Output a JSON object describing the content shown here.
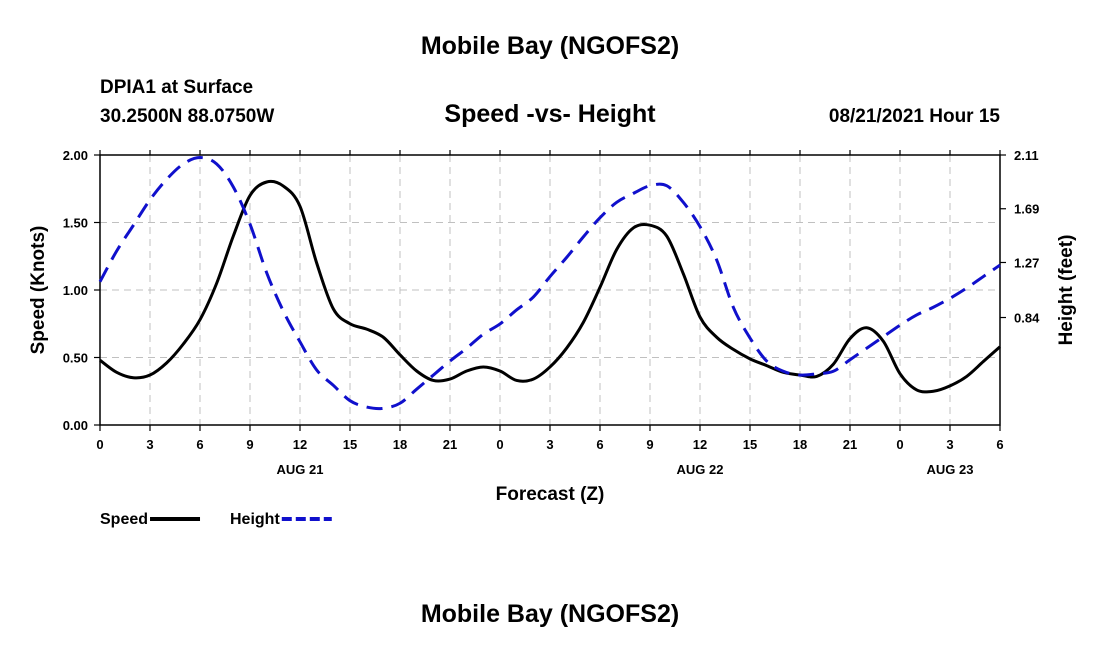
{
  "header": {
    "title": "Mobile Bay (NGOFS2)",
    "station": "DPIA1 at Surface",
    "location": "30.2500N  88.0750W",
    "chart_title": "Speed -vs- Height",
    "datetime": "08/21/2021 Hour 15"
  },
  "footer": {
    "title": "Mobile Bay (NGOFS2)"
  },
  "chart_data": {
    "type": "line",
    "title": "Speed -vs- Height",
    "xlabel": "Forecast (Z)",
    "ylabel_left": "Speed (Knots)",
    "ylabel_right": "Height (feet)",
    "x_unit": "hours from 00Z Aug 21",
    "xlim": [
      0,
      54
    ],
    "ylim_left": [
      0,
      2.0
    ],
    "ylim_right": [
      0,
      2.11
    ],
    "grid": true,
    "x_ticks": [
      0,
      3,
      6,
      9,
      12,
      15,
      18,
      21,
      24,
      27,
      30,
      33,
      36,
      39,
      42,
      45,
      48,
      51,
      54
    ],
    "x_tick_labels": [
      "0",
      "3",
      "6",
      "9",
      "12",
      "15",
      "18",
      "21",
      "0",
      "3",
      "6",
      "9",
      "12",
      "15",
      "18",
      "21",
      "0",
      "3",
      "6"
    ],
    "y_left_ticks": [
      0,
      0.5,
      1.0,
      1.5,
      2.0
    ],
    "y_left_tick_labels": [
      "0.00",
      "0.50",
      "1.00",
      "1.50",
      "2.00"
    ],
    "y_right_tick_labels": [
      "0.84",
      "1.27",
      "1.69",
      "2.11"
    ],
    "date_labels": [
      {
        "x": 12,
        "label": "AUG 21"
      },
      {
        "x": 36,
        "label": "AUG 22"
      },
      {
        "x": 51,
        "label": "AUG 23"
      }
    ],
    "legend": [
      {
        "name": "Speed",
        "color": "#000000",
        "style": "solid"
      },
      {
        "name": "Height",
        "color": "#1010cc",
        "style": "dashed"
      }
    ],
    "series": [
      {
        "name": "Speed",
        "axis": "left",
        "color": "#000000",
        "style": "solid",
        "x": [
          0,
          1,
          2,
          3,
          4,
          5,
          6,
          7,
          8,
          9,
          10,
          11,
          12,
          13,
          14,
          15,
          16,
          17,
          18,
          19,
          20,
          21,
          22,
          23,
          24,
          25,
          26,
          27,
          28,
          29,
          30,
          31,
          32,
          33,
          34,
          35,
          36,
          37,
          38,
          39,
          40,
          41,
          42,
          43,
          44,
          45,
          46,
          47,
          48,
          49,
          50,
          51,
          52,
          53,
          54
        ],
        "values": [
          0.48,
          0.39,
          0.35,
          0.37,
          0.46,
          0.6,
          0.78,
          1.05,
          1.4,
          1.7,
          1.8,
          1.77,
          1.62,
          1.2,
          0.86,
          0.75,
          0.71,
          0.65,
          0.52,
          0.4,
          0.33,
          0.34,
          0.4,
          0.43,
          0.4,
          0.33,
          0.34,
          0.43,
          0.57,
          0.76,
          1.02,
          1.3,
          1.46,
          1.48,
          1.4,
          1.12,
          0.8,
          0.65,
          0.56,
          0.49,
          0.44,
          0.39,
          0.37,
          0.36,
          0.45,
          0.64,
          0.72,
          0.62,
          0.38,
          0.26,
          0.25,
          0.29,
          0.36,
          0.47,
          0.58
        ]
      },
      {
        "name": "Height",
        "axis": "right",
        "color": "#1010cc",
        "style": "dashed",
        "x": [
          0,
          1,
          2,
          3,
          4,
          5,
          6,
          7,
          8,
          9,
          10,
          11,
          12,
          13,
          14,
          15,
          16,
          17,
          18,
          19,
          20,
          21,
          22,
          23,
          24,
          25,
          26,
          27,
          28,
          29,
          30,
          31,
          32,
          33,
          34,
          35,
          36,
          37,
          38,
          39,
          40,
          41,
          42,
          43,
          44,
          45,
          46,
          47,
          48,
          49,
          50,
          51,
          52,
          53,
          54
        ],
        "values": [
          1.12,
          1.36,
          1.56,
          1.76,
          1.92,
          2.04,
          2.09,
          2.04,
          1.86,
          1.57,
          1.19,
          0.89,
          0.65,
          0.43,
          0.31,
          0.19,
          0.14,
          0.13,
          0.17,
          0.28,
          0.39,
          0.5,
          0.6,
          0.71,
          0.79,
          0.9,
          1.0,
          1.16,
          1.31,
          1.47,
          1.62,
          1.74,
          1.81,
          1.87,
          1.87,
          1.74,
          1.55,
          1.29,
          0.92,
          0.68,
          0.5,
          0.42,
          0.39,
          0.4,
          0.42,
          0.51,
          0.6,
          0.69,
          0.78,
          0.86,
          0.92,
          0.99,
          1.07,
          1.16,
          1.25
        ]
      }
    ]
  }
}
